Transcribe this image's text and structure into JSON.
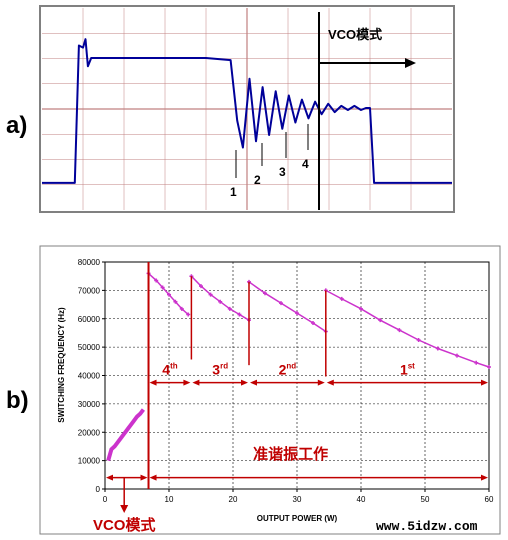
{
  "panels": {
    "a": {
      "label": "a)",
      "mode_label": "VCO模式",
      "markers": [
        "1",
        "2",
        "3",
        "4"
      ]
    },
    "b": {
      "label": "b)",
      "region_labels": [
        {
          "base": "4",
          "sup": "th"
        },
        {
          "base": "3",
          "sup": "rd"
        },
        {
          "base": "2",
          "sup": "nd"
        },
        {
          "base": "1",
          "sup": "st"
        }
      ],
      "quasi_resonant_label": "准谐振工作",
      "vco_label": "VCO模式"
    }
  },
  "watermark": "www.5idzw.com",
  "colors": {
    "trace_blue": "#000099",
    "curve_magenta": "#cc33cc",
    "annotation_red": "#c00000",
    "grid_red": "#c08080",
    "frame_gray": "#808080"
  },
  "chart_data": [
    {
      "type": "line",
      "title": "",
      "description_free": true,
      "x": [
        0,
        4,
        4.5,
        5,
        5.3,
        5.6,
        6,
        8,
        20,
        23,
        23.8,
        24.5,
        25.3,
        26.1,
        26.9,
        27.7,
        28.5,
        29.3,
        30.1,
        30.9,
        31.7,
        32.5,
        33.3,
        34.1,
        34.9,
        35.7,
        36.5,
        37.3,
        38.1,
        38.9,
        39.5,
        40.0,
        40.5,
        50.0
      ],
      "y": [
        0,
        0,
        6.6,
        6.5,
        6.9,
        5.6,
        6.0,
        6.0,
        6.0,
        5.9,
        3.0,
        1.7,
        5.0,
        2.0,
        4.6,
        2.3,
        4.4,
        2.6,
        4.2,
        2.9,
        4.0,
        3.1,
        3.9,
        3.3,
        3.8,
        3.4,
        3.7,
        3.5,
        3.7,
        3.5,
        3.6,
        3.6,
        0,
        0
      ],
      "xlim": [
        0,
        50
      ],
      "ylim": [
        -1.3,
        8.4
      ],
      "grid": true,
      "axis_labels_shown": false
    },
    {
      "type": "line",
      "xlabel": "OUTPUT POWER (W)",
      "ylabel": "SWITCHING FREQUENCY (Hz)",
      "xlim": [
        0,
        60
      ],
      "ylim": [
        0,
        80000
      ],
      "xticks": [
        0,
        10,
        20,
        30,
        40,
        50,
        60
      ],
      "yticks": [
        0,
        10000,
        20000,
        30000,
        40000,
        50000,
        60000,
        70000,
        80000
      ],
      "grid": true,
      "series": [
        {
          "x": [
            0.5,
            1,
            1.5,
            2,
            2.5,
            3,
            3.5,
            4,
            4.5,
            5,
            5.5,
            6
          ],
          "y": [
            10000,
            14000,
            15000,
            16500,
            18000,
            19500,
            21000,
            22500,
            24000,
            25500,
            26500,
            28000
          ]
        },
        {
          "x": [
            6.8,
            8,
            9,
            10,
            11,
            12,
            13
          ],
          "y": [
            76000,
            73500,
            71000,
            68500,
            66000,
            63500,
            61500
          ]
        },
        {
          "x": [
            13.5,
            15,
            16.5,
            18,
            19.5,
            21,
            22.5
          ],
          "y": [
            75000,
            71500,
            68500,
            66000,
            63500,
            61500,
            59500
          ]
        },
        {
          "x": [
            22.5,
            25,
            27.5,
            30,
            32.5,
            34.5
          ],
          "y": [
            73000,
            69000,
            65500,
            62000,
            58500,
            55500
          ]
        },
        {
          "x": [
            34.5,
            37,
            40,
            43,
            46,
            49,
            52,
            55,
            58,
            60
          ],
          "y": [
            70000,
            67000,
            63500,
            59500,
            56000,
            52500,
            49500,
            47000,
            44500,
            43000
          ]
        }
      ],
      "vertical_lines_x": [
        6.8,
        13.5,
        22.5,
        34.5
      ],
      "regions": [
        {
          "label_index": 0,
          "x": [
            6.8,
            13.5
          ]
        },
        {
          "label_index": 1,
          "x": [
            13.5,
            22.5
          ]
        },
        {
          "label_index": 2,
          "x": [
            22.5,
            34.5
          ]
        },
        {
          "label_index": 3,
          "x": [
            34.5,
            60
          ]
        }
      ],
      "lower_arrows": [
        {
          "x": [
            0,
            6.8
          ],
          "label": "vco_label"
        },
        {
          "x": [
            6.8,
            60
          ],
          "label": "quasi_resonant_label"
        }
      ]
    }
  ]
}
